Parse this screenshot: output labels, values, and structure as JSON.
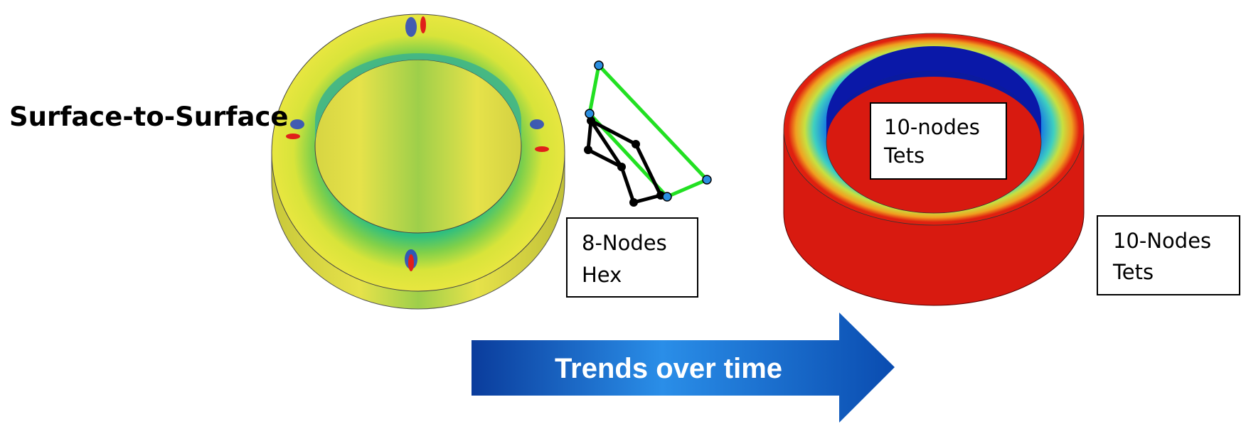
{
  "title": "Surface-to-Surface",
  "boxes": [
    {
      "lines": [
        "8-Nodes",
        "Hex"
      ]
    },
    {
      "lines": [
        "10-nodes",
        "Tets"
      ]
    },
    {
      "lines": [
        "10-Nodes",
        "Tets"
      ]
    }
  ],
  "arrow": {
    "label": "Trends over time"
  }
}
